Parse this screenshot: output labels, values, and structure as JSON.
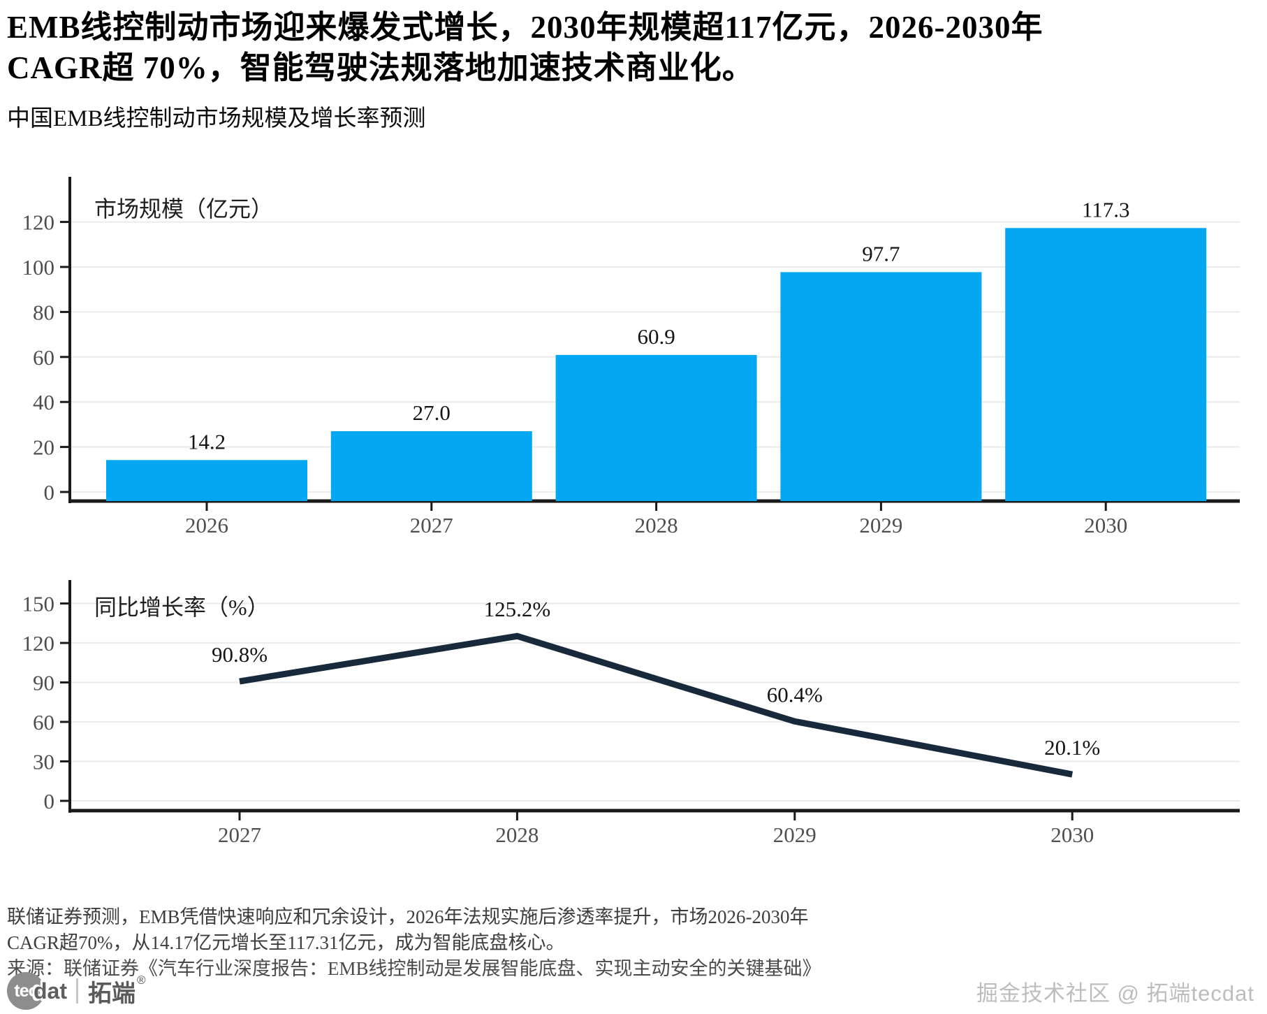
{
  "header": {
    "title_line1": "EMB线控制动市场迎来爆发式增长，2030年规模超117亿元，2026-2030年",
    "title_line2": "CAGR超 70%，智能驾驶法规落地加速技术商业化。",
    "subtitle": "中国EMB线控制动市场规模及增长率预测"
  },
  "chart_data": [
    {
      "type": "bar",
      "title": "市场规模（亿元）",
      "categories": [
        "2026",
        "2027",
        "2028",
        "2029",
        "2030"
      ],
      "values": [
        14.2,
        27.0,
        60.9,
        97.7,
        117.3
      ],
      "value_labels": [
        "14.2",
        "27.0",
        "60.9",
        "97.7",
        "117.3"
      ],
      "yticks": [
        0,
        20,
        40,
        60,
        80,
        100,
        120
      ],
      "ylim": [
        0,
        140
      ],
      "xlabel": "",
      "ylabel": "",
      "grid": true,
      "legend_position": "none",
      "bar_color": "#03a7f2",
      "grid_color": "#ebebeb",
      "axis_color": "#1a1a1a",
      "tick_label_color": "#4d4d4d",
      "value_label_color": "#141414"
    },
    {
      "type": "line",
      "title": "同比增长率（%）",
      "categories": [
        "2027",
        "2028",
        "2029",
        "2030"
      ],
      "values": [
        90.8,
        125.2,
        60.4,
        20.1
      ],
      "value_labels": [
        "90.8%",
        "125.2%",
        "60.4%",
        "20.1%"
      ],
      "yticks": [
        0,
        30,
        60,
        90,
        120,
        150
      ],
      "ylim": [
        0,
        167
      ],
      "xlabel": "",
      "ylabel": "",
      "grid": true,
      "legend_position": "none",
      "line_color": "#17293b",
      "grid_color": "#ebebeb",
      "axis_color": "#1a1a1a",
      "tick_label_color": "#4d4d4d",
      "value_label_color": "#141414"
    }
  ],
  "footer": {
    "note_line1": "联储证券预测，EMB凭借快速响应和冗余设计，2026年法规实施后渗透率提升，市场2026-2030年",
    "note_line2": "CAGR超70%，从14.17亿元增长至117.31亿元，成为智能底盘核心。",
    "source": "来源：联储证券《汽车行业深度报告：EMB线控制动是发展智能底盘、实现主动安全的关键基础》"
  },
  "branding": {
    "logo_tec": "tec",
    "logo_dat": "dat",
    "logo_cn": "拓端",
    "logo_reg": "®",
    "watermark": "掘金技术社区 @ 拓端tecdat"
  }
}
